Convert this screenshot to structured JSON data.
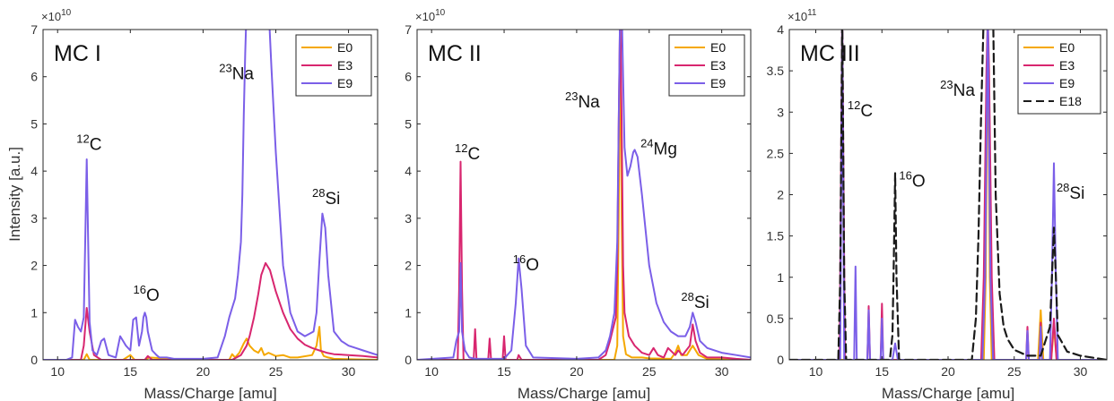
{
  "figure": {
    "ylabel": "Intensity [a.u.]",
    "xlabel": "Mass/Charge [amu]"
  },
  "chart_data": [
    {
      "type": "line",
      "title": "MC I",
      "xlabel": "Mass/Charge [amu]",
      "ylabel": "Intensity [a.u.]",
      "xlim": [
        9,
        32
      ],
      "ylim": [
        0,
        7
      ],
      "multiplier": "×10",
      "exponent": "10",
      "xticks": [
        10,
        15,
        20,
        25,
        30
      ],
      "yticks": [
        0,
        1,
        2,
        3,
        4,
        5,
        6,
        7
      ],
      "legend_position": "top-right",
      "grid": false,
      "annotations": [
        {
          "mass": "12",
          "element": "C",
          "x": 11.3,
          "y": 4.45
        },
        {
          "mass": "16",
          "element": "O",
          "x": 15.2,
          "y": 1.25
        },
        {
          "mass": "23",
          "element": "Na",
          "x": 21.1,
          "y": 5.95
        },
        {
          "mass": "28",
          "element": "Si",
          "x": 27.5,
          "y": 3.3
        }
      ],
      "series": [
        {
          "name": "E0",
          "color": "#f5a800",
          "dash": false,
          "x": [
            9,
            11.8,
            12,
            12.2,
            14.5,
            15,
            15.3,
            16,
            16.3,
            19,
            21.8,
            22,
            22.2,
            22.5,
            22.8,
            23,
            23.2,
            23.5,
            23.8,
            24,
            24.2,
            24.5,
            25,
            25.5,
            26,
            26.5,
            27.5,
            27.8,
            28,
            28.1,
            28.3,
            28.6,
            29,
            32
          ],
          "y": [
            0,
            0,
            0.12,
            0,
            0,
            0.1,
            0,
            0,
            0.05,
            0,
            0,
            0.12,
            0.05,
            0.15,
            0.35,
            0.45,
            0.3,
            0.2,
            0.15,
            0.25,
            0.1,
            0.15,
            0.08,
            0.1,
            0.05,
            0.05,
            0.1,
            0.3,
            0.7,
            0.2,
            0.08,
            0.05,
            0.02,
            0
          ]
        },
        {
          "name": "E3",
          "color": "#d8266f",
          "dash": false,
          "x": [
            9,
            11.6,
            11.8,
            12,
            12.2,
            12.5,
            13,
            16,
            16.2,
            16.5,
            20,
            22,
            22.6,
            23,
            23.2,
            23.5,
            23.8,
            24,
            24.3,
            24.6,
            25,
            25.5,
            26,
            26.5,
            27,
            27.5,
            28,
            28.5,
            29,
            30,
            31,
            32
          ],
          "y": [
            0,
            0,
            0.3,
            1.1,
            0.6,
            0.1,
            0,
            0,
            0.08,
            0,
            0,
            0,
            0.1,
            0.3,
            0.5,
            0.9,
            1.4,
            1.8,
            2.05,
            1.9,
            1.45,
            1.0,
            0.65,
            0.45,
            0.32,
            0.25,
            0.2,
            0.15,
            0.12,
            0.1,
            0.08,
            0.05
          ]
        },
        {
          "name": "E9",
          "color": "#7b5fe8",
          "dash": false,
          "x": [
            9,
            10.6,
            11,
            11.2,
            11.4,
            11.6,
            11.8,
            11.9,
            12,
            12.1,
            12.2,
            12.4,
            12.7,
            13,
            13.2,
            13.5,
            14,
            14.3,
            14.5,
            14.7,
            15,
            15.2,
            15.4,
            15.6,
            15.8,
            15.9,
            16,
            16.1,
            16.2,
            16.5,
            16.8,
            17,
            17.5,
            18,
            19,
            20,
            21,
            21.5,
            21.8,
            22,
            22.2,
            22.4,
            22.6,
            22.7,
            22.8,
            22.9,
            23,
            23.3,
            23.6,
            24,
            24.2,
            24.5,
            24.7,
            25,
            25.5,
            26,
            26.5,
            27,
            27.3,
            27.6,
            27.8,
            28,
            28.2,
            28.4,
            28.6,
            29,
            29.5,
            30,
            30.5,
            31,
            32
          ],
          "y": [
            0,
            0,
            0.05,
            0.85,
            0.7,
            0.6,
            0.9,
            2.5,
            4.25,
            2.5,
            0.8,
            0.2,
            0.1,
            0.4,
            0.45,
            0.1,
            0.05,
            0.5,
            0.4,
            0.3,
            0.2,
            0.85,
            0.9,
            0.3,
            0.6,
            0.9,
            1.0,
            0.9,
            0.6,
            0.2,
            0.1,
            0.05,
            0.05,
            0.02,
            0.02,
            0.02,
            0.05,
            0.5,
            0.9,
            1.1,
            1.3,
            1.8,
            2.5,
            3.5,
            5.2,
            6.5,
            7.5,
            7.5,
            7.5,
            7.5,
            7.5,
            7.5,
            6.2,
            4.4,
            2.0,
            1.0,
            0.6,
            0.5,
            0.55,
            0.6,
            1.0,
            2.1,
            3.1,
            2.8,
            1.8,
            0.6,
            0.4,
            0.3,
            0.25,
            0.2,
            0.1
          ]
        }
      ]
    },
    {
      "type": "line",
      "title": "MC II",
      "xlabel": "Mass/Charge [amu]",
      "ylabel": "",
      "xlim": [
        9,
        32
      ],
      "ylim": [
        0,
        7
      ],
      "multiplier": "×10",
      "exponent": "10",
      "xticks": [
        10,
        15,
        20,
        25,
        30
      ],
      "yticks": [
        0,
        1,
        2,
        3,
        4,
        5,
        6,
        7
      ],
      "legend_position": "top-right",
      "grid": false,
      "annotations": [
        {
          "mass": "12",
          "element": "C",
          "x": 11.6,
          "y": 4.25
        },
        {
          "mass": "16",
          "element": "O",
          "x": 15.6,
          "y": 1.9
        },
        {
          "mass": "23",
          "element": "Na",
          "x": 19.2,
          "y": 5.35
        },
        {
          "mass": "24",
          "element": "Mg",
          "x": 24.4,
          "y": 4.35
        },
        {
          "mass": "28",
          "element": "Si",
          "x": 27.2,
          "y": 1.1
        }
      ],
      "series": [
        {
          "name": "E0",
          "color": "#f5a800",
          "dash": false,
          "x": [
            9,
            22.6,
            22.8,
            22.9,
            23,
            23.1,
            23.2,
            23.4,
            23.8,
            24.5,
            25,
            26.5,
            26.8,
            27,
            27.2,
            27.6,
            28,
            28.4,
            29,
            32
          ],
          "y": [
            0,
            0,
            0.3,
            3.0,
            7.5,
            3.0,
            0.5,
            0.12,
            0.05,
            0.05,
            0.03,
            0.02,
            0.15,
            0.3,
            0.1,
            0.1,
            0.3,
            0.1,
            0.02,
            0
          ]
        },
        {
          "name": "E3",
          "color": "#d8266f",
          "dash": false,
          "x": [
            9,
            11.8,
            11.9,
            12,
            12.1,
            12.2,
            12.9,
            13,
            13.1,
            13.9,
            14,
            14.1,
            14.9,
            15,
            15.1,
            15.9,
            16,
            16.2,
            21.5,
            22,
            22.3,
            22.5,
            22.7,
            22.8,
            22.9,
            23,
            23.1,
            23.2,
            23.3,
            23.6,
            24,
            24.5,
            25,
            25.3,
            25.6,
            26,
            26.3,
            26.8,
            27,
            27.3,
            27.8,
            28,
            28.2,
            28.5,
            29,
            30,
            31,
            32
          ],
          "y": [
            0,
            0,
            1.5,
            4.2,
            1.5,
            0,
            0,
            0.65,
            0,
            0,
            0.45,
            0,
            0,
            0.5,
            0,
            0,
            0.1,
            0,
            0,
            0.1,
            0.4,
            0.65,
            0.9,
            2.0,
            5.0,
            7.5,
            5.0,
            2.0,
            1.0,
            0.5,
            0.3,
            0.15,
            0.1,
            0.25,
            0.1,
            0.05,
            0.25,
            0.1,
            0.2,
            0.1,
            0.3,
            0.75,
            0.4,
            0.15,
            0.05,
            0.05,
            0.02,
            0
          ]
        },
        {
          "name": "E9",
          "color": "#7b5fe8",
          "dash": false,
          "x": [
            9,
            11.5,
            11.7,
            11.9,
            12,
            12.1,
            12.3,
            12.6,
            13,
            15,
            15.5,
            15.8,
            16,
            16.2,
            16.5,
            17,
            20,
            21.5,
            22,
            22.3,
            22.6,
            22.8,
            22.9,
            23,
            23.1,
            23.2,
            23.3,
            23.5,
            23.7,
            23.9,
            24,
            24.2,
            24.5,
            25,
            25.5,
            26,
            26.5,
            27,
            27.5,
            27.8,
            28,
            28.2,
            28.5,
            29,
            30,
            31,
            32
          ],
          "y": [
            0,
            0.05,
            0.4,
            0.6,
            2.05,
            0.6,
            0.2,
            0.05,
            0.02,
            0.02,
            0.2,
            1.2,
            2.15,
            1.5,
            0.3,
            0.05,
            0.02,
            0.05,
            0.2,
            0.5,
            1.0,
            2.5,
            5.0,
            7.5,
            7.5,
            6.0,
            4.5,
            3.9,
            4.1,
            4.4,
            4.45,
            4.3,
            3.5,
            2.0,
            1.2,
            0.8,
            0.6,
            0.5,
            0.5,
            0.7,
            1.0,
            0.8,
            0.4,
            0.25,
            0.15,
            0.1,
            0.05
          ]
        }
      ]
    },
    {
      "type": "line",
      "title": "MC III",
      "xlabel": "Mass/Charge [amu]",
      "ylabel": "",
      "xlim": [
        8,
        32
      ],
      "ylim": [
        0,
        4
      ],
      "multiplier": "×10",
      "exponent": "11",
      "xticks": [
        10,
        15,
        20,
        25,
        30
      ],
      "yticks": [
        0,
        0.5,
        1,
        1.5,
        2,
        2.5,
        3,
        3.5,
        4
      ],
      "legend_position": "top-right",
      "grid": false,
      "annotations": [
        {
          "mass": "12",
          "element": "C",
          "x": 12.4,
          "y": 2.95
        },
        {
          "mass": "16",
          "element": "O",
          "x": 16.3,
          "y": 2.1
        },
        {
          "mass": "23",
          "element": "Na",
          "x": 19.4,
          "y": 3.2
        },
        {
          "mass": "28",
          "element": "Si",
          "x": 28.2,
          "y": 1.95
        }
      ],
      "series": [
        {
          "name": "E0",
          "color": "#f5a800",
          "dash": false,
          "x": [
            8,
            22.7,
            22.85,
            23,
            23.15,
            23.3,
            26.8,
            27,
            27.2,
            27.8,
            28,
            28.2,
            32
          ],
          "y": [
            0,
            0,
            1.0,
            4.2,
            1.0,
            0,
            0,
            0.6,
            0,
            0,
            0.4,
            0,
            0
          ]
        },
        {
          "name": "E3",
          "color": "#d8266f",
          "dash": false,
          "x": [
            8,
            11.8,
            12,
            12.2,
            13.9,
            14,
            14.1,
            14.9,
            15,
            15.1,
            22.5,
            22.7,
            22.9,
            23,
            23.1,
            23.3,
            23.5,
            25.9,
            26,
            26.1,
            26.9,
            27,
            27.1,
            27.8,
            28,
            28.2,
            32
          ],
          "y": [
            0,
            0,
            4.2,
            0,
            0,
            0.65,
            0,
            0,
            0.68,
            0,
            0,
            1.0,
            3.5,
            4.2,
            3.5,
            1.0,
            0,
            0,
            0.4,
            0,
            0,
            0.45,
            0,
            0,
            0.5,
            0,
            0
          ]
        },
        {
          "name": "E9",
          "color": "#7b5fe8",
          "dash": false,
          "x": [
            8,
            11.85,
            12,
            12.15,
            12.9,
            13,
            13.1,
            13.9,
            14,
            14.1,
            14.9,
            15,
            15.1,
            15.8,
            16,
            16.2,
            22.6,
            22.8,
            23,
            23.2,
            23.4,
            25.9,
            26,
            26.1,
            26.9,
            27,
            27.1,
            27.7,
            27.85,
            28,
            28.15,
            28.3,
            32
          ],
          "y": [
            0,
            0,
            4.2,
            0,
            0,
            1.13,
            0,
            0,
            0.6,
            0,
            0,
            0.5,
            0,
            0,
            0.2,
            0,
            0,
            1.0,
            4.2,
            1.0,
            0,
            0,
            0.35,
            0,
            0,
            0.4,
            0,
            0,
            1.0,
            2.38,
            1.0,
            0,
            0
          ]
        },
        {
          "name": "E18",
          "color": "#1a1a1a",
          "dash": true,
          "x": [
            8,
            11.7,
            11.85,
            12,
            12.15,
            12.3,
            15.6,
            15.8,
            15.9,
            16,
            16.1,
            16.3,
            21.8,
            22.1,
            22.3,
            22.5,
            22.7,
            22.85,
            23,
            23.2,
            23.4,
            23.6,
            23.9,
            24.2,
            24.5,
            25,
            26,
            27,
            27.7,
            27.85,
            28,
            28.15,
            28.3,
            29,
            30,
            32
          ],
          "y": [
            0,
            0,
            1.0,
            4.2,
            1.0,
            0,
            0,
            0.3,
            1.2,
            2.26,
            1.0,
            0,
            0,
            0.5,
            1.5,
            3.0,
            4.2,
            4.2,
            4.2,
            4.2,
            4.2,
            2.0,
            0.8,
            0.4,
            0.25,
            0.12,
            0.05,
            0.05,
            0.4,
            1.0,
            1.6,
            1.0,
            0.3,
            0.1,
            0.05,
            0
          ]
        }
      ]
    }
  ]
}
